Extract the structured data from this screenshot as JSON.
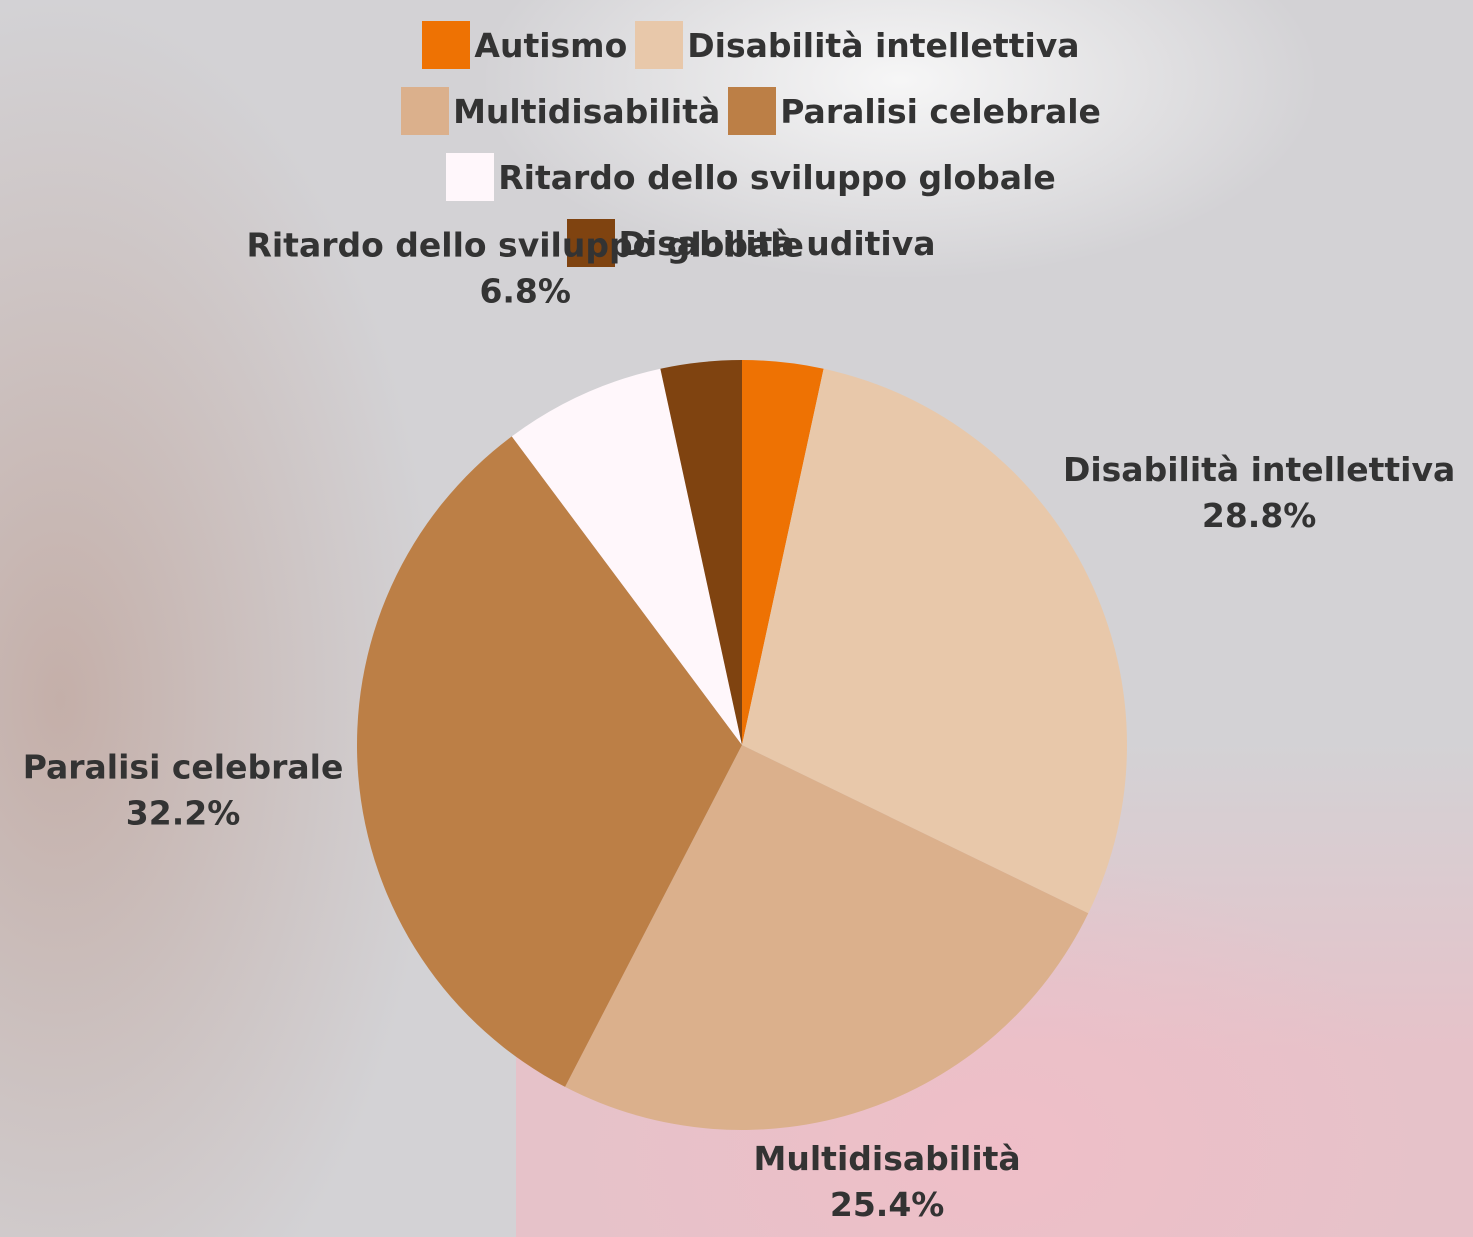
{
  "chart_data": {
    "type": "pie",
    "categories": [
      "Autismo",
      "Disabilità intellettiva",
      "Multidisabilità",
      "Paralisi celebrale",
      "Ritardo dello sviluppo globale",
      "Disabilità uditiva"
    ],
    "values": [
      3.4,
      28.8,
      25.4,
      32.2,
      6.8,
      3.4
    ],
    "value_labels": [
      null,
      "28.8%",
      "25.4%",
      "32.2%",
      "6.8%",
      null
    ],
    "colors": [
      "#ee7203",
      "#e8c8aa",
      "#dbb08c",
      "#bc7f46",
      "#fff7fb",
      "#7f4310"
    ],
    "legend": "top"
  }
}
